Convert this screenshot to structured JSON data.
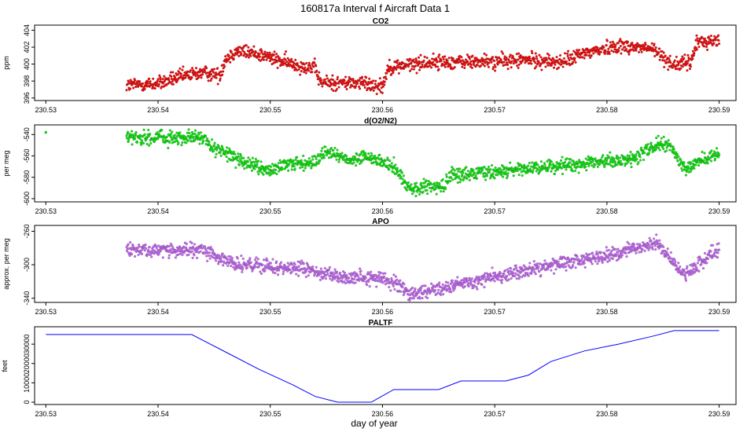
{
  "page": {
    "title": "160817a   Interval f Aircraft Data 1",
    "xlabel": "day of year"
  },
  "chart_data": [
    {
      "type": "scatter",
      "title": "CO2",
      "ylabel": "ppm",
      "color": "#ff0000",
      "xlim": [
        230.529,
        230.5915
      ],
      "ylim": [
        395.7,
        404.6
      ],
      "yticks": [
        396,
        398,
        400,
        402,
        404
      ],
      "xticks": [
        230.53,
        230.54,
        230.55,
        230.56,
        230.57,
        230.58,
        230.59
      ],
      "x_start": 230.5372,
      "x_end": 230.59,
      "profile": [
        [
          230.5372,
          397.5
        ],
        [
          230.54,
          397.7
        ],
        [
          230.542,
          398.5
        ],
        [
          230.544,
          399.0
        ],
        [
          230.5455,
          398.7
        ],
        [
          230.546,
          400.6
        ],
        [
          230.547,
          401.6
        ],
        [
          230.549,
          401.2
        ],
        [
          230.551,
          400.3
        ],
        [
          230.554,
          399.5
        ],
        [
          230.5545,
          397.8
        ],
        [
          230.558,
          397.8
        ],
        [
          230.56,
          397.4
        ],
        [
          230.5605,
          399.6
        ],
        [
          230.564,
          400.2
        ],
        [
          230.57,
          400.3
        ],
        [
          230.573,
          400.5
        ],
        [
          230.576,
          400.2
        ],
        [
          230.578,
          401.3
        ],
        [
          230.581,
          402.2
        ],
        [
          230.584,
          401.8
        ],
        [
          230.586,
          399.9
        ],
        [
          230.5875,
          400.2
        ],
        [
          230.588,
          402.6
        ],
        [
          230.59,
          402.8
        ]
      ],
      "noise": 0.8
    },
    {
      "type": "scatter",
      "title": "d(O2/N2)",
      "ylabel": "per meg",
      "color": "#00ee00",
      "xlim": [
        230.529,
        230.5915
      ],
      "ylim": [
        -603,
        -531
      ],
      "yticks": [
        -540,
        -560,
        -580,
        -600
      ],
      "xticks": [
        230.53,
        230.54,
        230.55,
        230.56,
        230.57,
        230.58,
        230.59
      ],
      "x_start": 230.5372,
      "x_end": 230.59,
      "outlier": [
        230.53,
        -538
      ],
      "profile": [
        [
          230.5372,
          -543
        ],
        [
          230.544,
          -543
        ],
        [
          230.545,
          -553
        ],
        [
          230.548,
          -568
        ],
        [
          230.55,
          -574
        ],
        [
          230.552,
          -567
        ],
        [
          230.554,
          -566
        ],
        [
          230.555,
          -556
        ],
        [
          230.557,
          -564
        ],
        [
          230.559,
          -562
        ],
        [
          230.561,
          -570
        ],
        [
          230.5625,
          -592
        ],
        [
          230.5655,
          -588
        ],
        [
          230.566,
          -578
        ],
        [
          230.57,
          -575
        ],
        [
          230.575,
          -570
        ],
        [
          230.579,
          -566
        ],
        [
          230.582,
          -564
        ],
        [
          230.5845,
          -549
        ],
        [
          230.5855,
          -550
        ],
        [
          230.587,
          -572
        ],
        [
          230.588,
          -566
        ],
        [
          230.59,
          -557
        ]
      ],
      "noise": 6
    },
    {
      "type": "scatter",
      "title": "APO",
      "ylabel": "approx. per meg",
      "color": "#cc66ff",
      "xlim": [
        230.529,
        230.5915
      ],
      "ylim": [
        -345,
        -253
      ],
      "yticks": [
        -260,
        -300,
        -340
      ],
      "xticks": [
        230.53,
        230.54,
        230.55,
        230.56,
        230.57,
        230.58,
        230.59
      ],
      "x_start": 230.5372,
      "x_end": 230.59,
      "profile": [
        [
          230.5372,
          -282
        ],
        [
          230.544,
          -283
        ],
        [
          230.547,
          -300
        ],
        [
          230.553,
          -305
        ],
        [
          230.556,
          -315
        ],
        [
          230.56,
          -315
        ],
        [
          230.5625,
          -335
        ],
        [
          230.566,
          -325
        ],
        [
          230.57,
          -315
        ],
        [
          230.575,
          -300
        ],
        [
          230.58,
          -290
        ],
        [
          230.5845,
          -273
        ],
        [
          230.5855,
          -292
        ],
        [
          230.587,
          -312
        ],
        [
          230.59,
          -280
        ]
      ],
      "noise": 8
    },
    {
      "type": "line",
      "title": "PALTF",
      "ylabel": "feet",
      "color": "#0000ff",
      "xlim": [
        230.529,
        230.5915
      ],
      "ylim": [
        -1200,
        39000
      ],
      "yticks": [
        0,
        10000,
        20000,
        30000
      ],
      "xticks": [
        230.53,
        230.54,
        230.55,
        230.56,
        230.57,
        230.58,
        230.59
      ],
      "x": [
        230.53,
        230.543,
        230.546,
        230.549,
        230.552,
        230.554,
        230.556,
        230.559,
        230.561,
        230.565,
        230.567,
        230.571,
        230.573,
        230.575,
        230.578,
        230.581,
        230.584,
        230.586,
        230.59
      ],
      "y": [
        35000,
        35000,
        26000,
        17000,
        9000,
        3000,
        0,
        0,
        6500,
        6500,
        11000,
        11000,
        14000,
        21000,
        26500,
        30000,
        34000,
        37000,
        37000
      ]
    }
  ]
}
